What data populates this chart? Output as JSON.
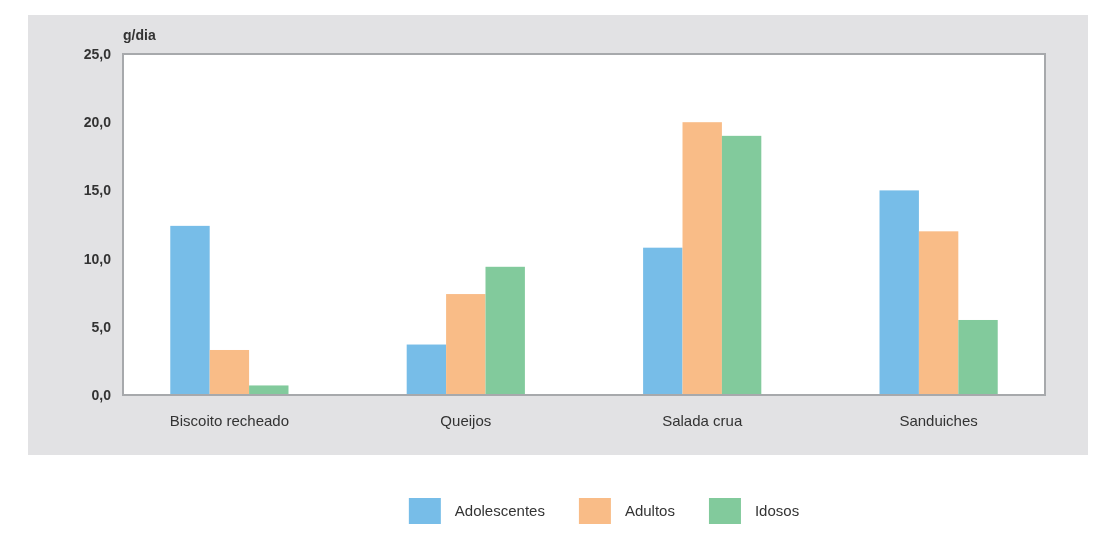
{
  "chart_data": {
    "type": "bar",
    "ylabel": "g/dia",
    "categories": [
      "Biscoito recheado",
      "Queijos",
      "Salada crua",
      "Sanduiches"
    ],
    "series": [
      {
        "name": "Adolescentes",
        "color": "#77bde8",
        "values": [
          12.4,
          3.7,
          10.8,
          15.0
        ]
      },
      {
        "name": "Adultos",
        "color": "#f9bc87",
        "values": [
          3.3,
          7.4,
          20.0,
          12.0
        ]
      },
      {
        "name": "Idosos",
        "color": "#82ca9c",
        "values": [
          0.7,
          9.4,
          19.0,
          5.5
        ]
      }
    ],
    "ylim": [
      0,
      25
    ],
    "yticks": [
      {
        "value": 0,
        "label": "0,0"
      },
      {
        "value": 5,
        "label": "5,0"
      },
      {
        "value": 10,
        "label": "10,0"
      },
      {
        "value": 15,
        "label": "15,0"
      },
      {
        "value": 20,
        "label": "20,0"
      },
      {
        "value": 25,
        "label": "25,0"
      }
    ],
    "grid": false,
    "legend": "bottom"
  }
}
